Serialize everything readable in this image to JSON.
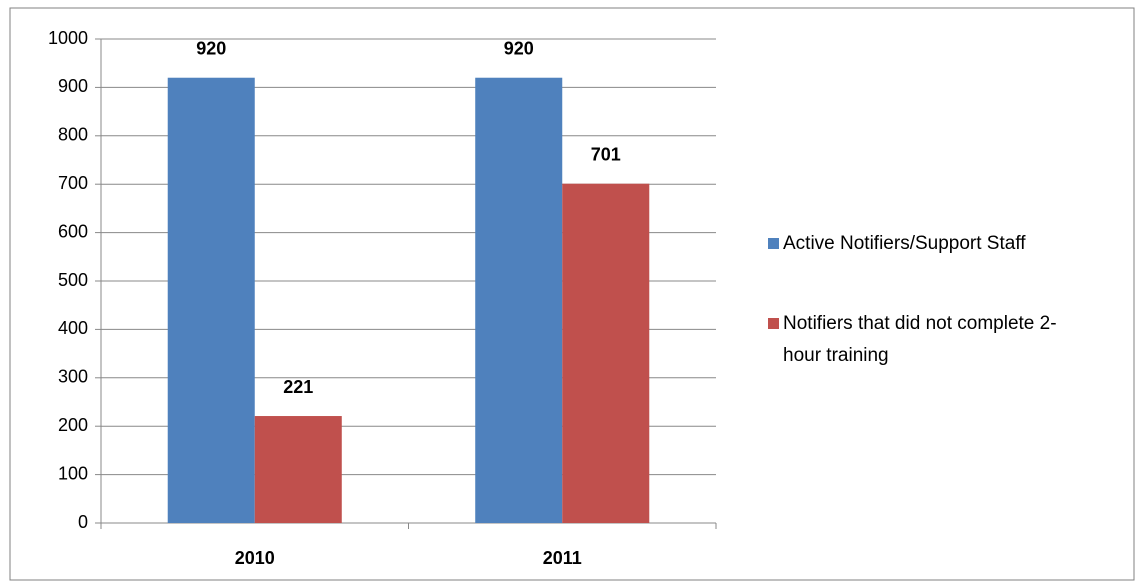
{
  "chart_data": {
    "type": "bar",
    "categories": [
      "2010",
      "2011"
    ],
    "series": [
      {
        "name": "Active Notifiers/Support Staff",
        "color": "#4f81bd",
        "values": [
          920,
          920
        ]
      },
      {
        "name": "Notifiers that did not complete 2-hour training",
        "color": "#c0504d",
        "values": [
          221,
          701
        ]
      }
    ],
    "ylim": [
      0,
      1000
    ],
    "yticks": [
      0,
      100,
      200,
      300,
      400,
      500,
      600,
      700,
      800,
      900,
      1000
    ],
    "grid": true,
    "legend": "right"
  }
}
